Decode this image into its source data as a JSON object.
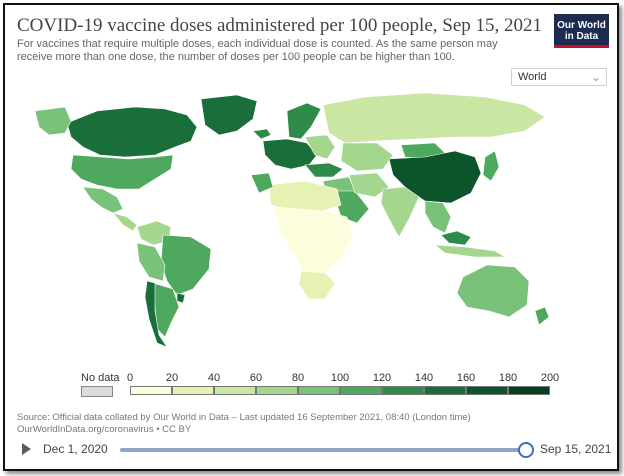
{
  "header": {
    "title": "COVID-19 vaccine doses administered per 100 people, Sep 15, 2021",
    "subtitle": "For vaccines that require multiple doses, each individual dose is counted. As the same person may receive more than one dose, the number of doses per 100 people can be higher than 100."
  },
  "logo": {
    "line1": "Our World",
    "line2": "in Data"
  },
  "region_select": {
    "value": "World"
  },
  "legend": {
    "no_data_label": "No data",
    "no_data_color": "#dcdcdc",
    "ticks": [
      "0",
      "20",
      "40",
      "60",
      "80",
      "100",
      "120",
      "140",
      "160",
      "180",
      "200"
    ],
    "colors": [
      "#fdfdde",
      "#e6f2b4",
      "#c9e6a2",
      "#a4d68e",
      "#79c27a",
      "#4ea95f",
      "#2e8b4b",
      "#1a6e39",
      "#0c542a",
      "#04401f"
    ]
  },
  "source": {
    "line1": "Source: Official data collated by Our World in Data – Last updated 16 September 2021, 08:40 (London time)",
    "line2": "OurWorldInData.org/coronavirus • CC BY"
  },
  "timeline": {
    "start_label": "Dec 1, 2020",
    "end_label": "Sep 15, 2021",
    "progress": 1.0
  },
  "map_data": {
    "regions": [
      {
        "name": "Canada",
        "band": 7
      },
      {
        "name": "Alaska",
        "band": 4
      },
      {
        "name": "Greenland",
        "band": 7
      },
      {
        "name": "USA",
        "band": 5
      },
      {
        "name": "Mexico",
        "band": 4
      },
      {
        "name": "Central America",
        "band": 3
      },
      {
        "name": "Colombia-Venezuela",
        "band": 3
      },
      {
        "name": "Brazil",
        "band": 5
      },
      {
        "name": "Peru-Bolivia",
        "band": 4
      },
      {
        "name": "Argentina",
        "band": 5
      },
      {
        "name": "Chile",
        "band": 7
      },
      {
        "name": "Uruguay",
        "band": 7
      },
      {
        "name": "Iceland",
        "band": 6
      },
      {
        "name": "Scandinavia",
        "band": 6
      },
      {
        "name": "Western Europe",
        "band": 7
      },
      {
        "name": "Eastern Europe",
        "band": 3
      },
      {
        "name": "Russia",
        "band": 2
      },
      {
        "name": "Turkey",
        "band": 6
      },
      {
        "name": "Kazakhstan",
        "band": 3
      },
      {
        "name": "Mongolia",
        "band": 5
      },
      {
        "name": "China",
        "band": 8
      },
      {
        "name": "Japan",
        "band": 5
      },
      {
        "name": "Middle East",
        "band": 4
      },
      {
        "name": "Saudi Arabia",
        "band": 5
      },
      {
        "name": "Iran",
        "band": 3
      },
      {
        "name": "India",
        "band": 3
      },
      {
        "name": "Southeast Asia",
        "band": 4
      },
      {
        "name": "Malaysia",
        "band": 6
      },
      {
        "name": "Indonesia",
        "band": 3
      },
      {
        "name": "North Africa",
        "band": 1
      },
      {
        "name": "Morocco",
        "band": 5
      },
      {
        "name": "Sub-Saharan Africa",
        "band": 0
      },
      {
        "name": "Southern Africa",
        "band": 1
      },
      {
        "name": "Australia",
        "band": 4
      },
      {
        "name": "New Zealand",
        "band": 5
      }
    ]
  }
}
